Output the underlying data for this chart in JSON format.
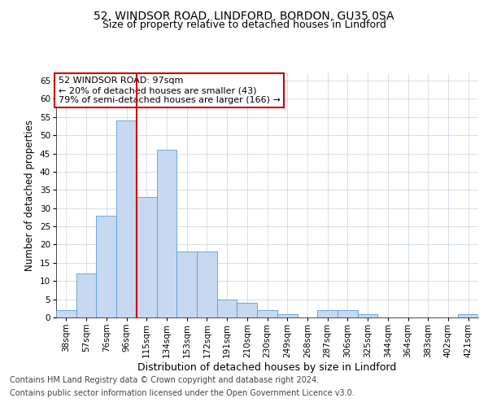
{
  "title1": "52, WINDSOR ROAD, LINDFORD, BORDON, GU35 0SA",
  "title2": "Size of property relative to detached houses in Lindford",
  "xlabel": "Distribution of detached houses by size in Lindford",
  "ylabel": "Number of detached properties",
  "footnote1": "Contains HM Land Registry data © Crown copyright and database right 2024.",
  "footnote2": "Contains public sector information licensed under the Open Government Licence v3.0.",
  "bins": [
    "38sqm",
    "57sqm",
    "76sqm",
    "96sqm",
    "115sqm",
    "134sqm",
    "153sqm",
    "172sqm",
    "191sqm",
    "210sqm",
    "230sqm",
    "249sqm",
    "268sqm",
    "287sqm",
    "306sqm",
    "325sqm",
    "344sqm",
    "364sqm",
    "383sqm",
    "402sqm",
    "421sqm"
  ],
  "counts": [
    2,
    12,
    28,
    54,
    33,
    46,
    18,
    18,
    5,
    4,
    2,
    1,
    0,
    2,
    2,
    1,
    0,
    0,
    0,
    0,
    1
  ],
  "bar_color": "#c6d9f0",
  "bar_edge_color": "#5b9bd5",
  "vline_color": "#cc0000",
  "vline_x_index": 3.5,
  "annotation_box_text": "52 WINDSOR ROAD: 97sqm\n← 20% of detached houses are smaller (43)\n79% of semi-detached houses are larger (166) →",
  "ylim": [
    0,
    67
  ],
  "yticks": [
    0,
    5,
    10,
    15,
    20,
    25,
    30,
    35,
    40,
    45,
    50,
    55,
    60,
    65
  ],
  "bg_color": "#ffffff",
  "grid_color": "#d0d8e8",
  "title1_fontsize": 10,
  "title2_fontsize": 9,
  "xlabel_fontsize": 9,
  "ylabel_fontsize": 8.5,
  "tick_fontsize": 7.5,
  "footnote_fontsize": 7,
  "annot_fontsize": 8
}
